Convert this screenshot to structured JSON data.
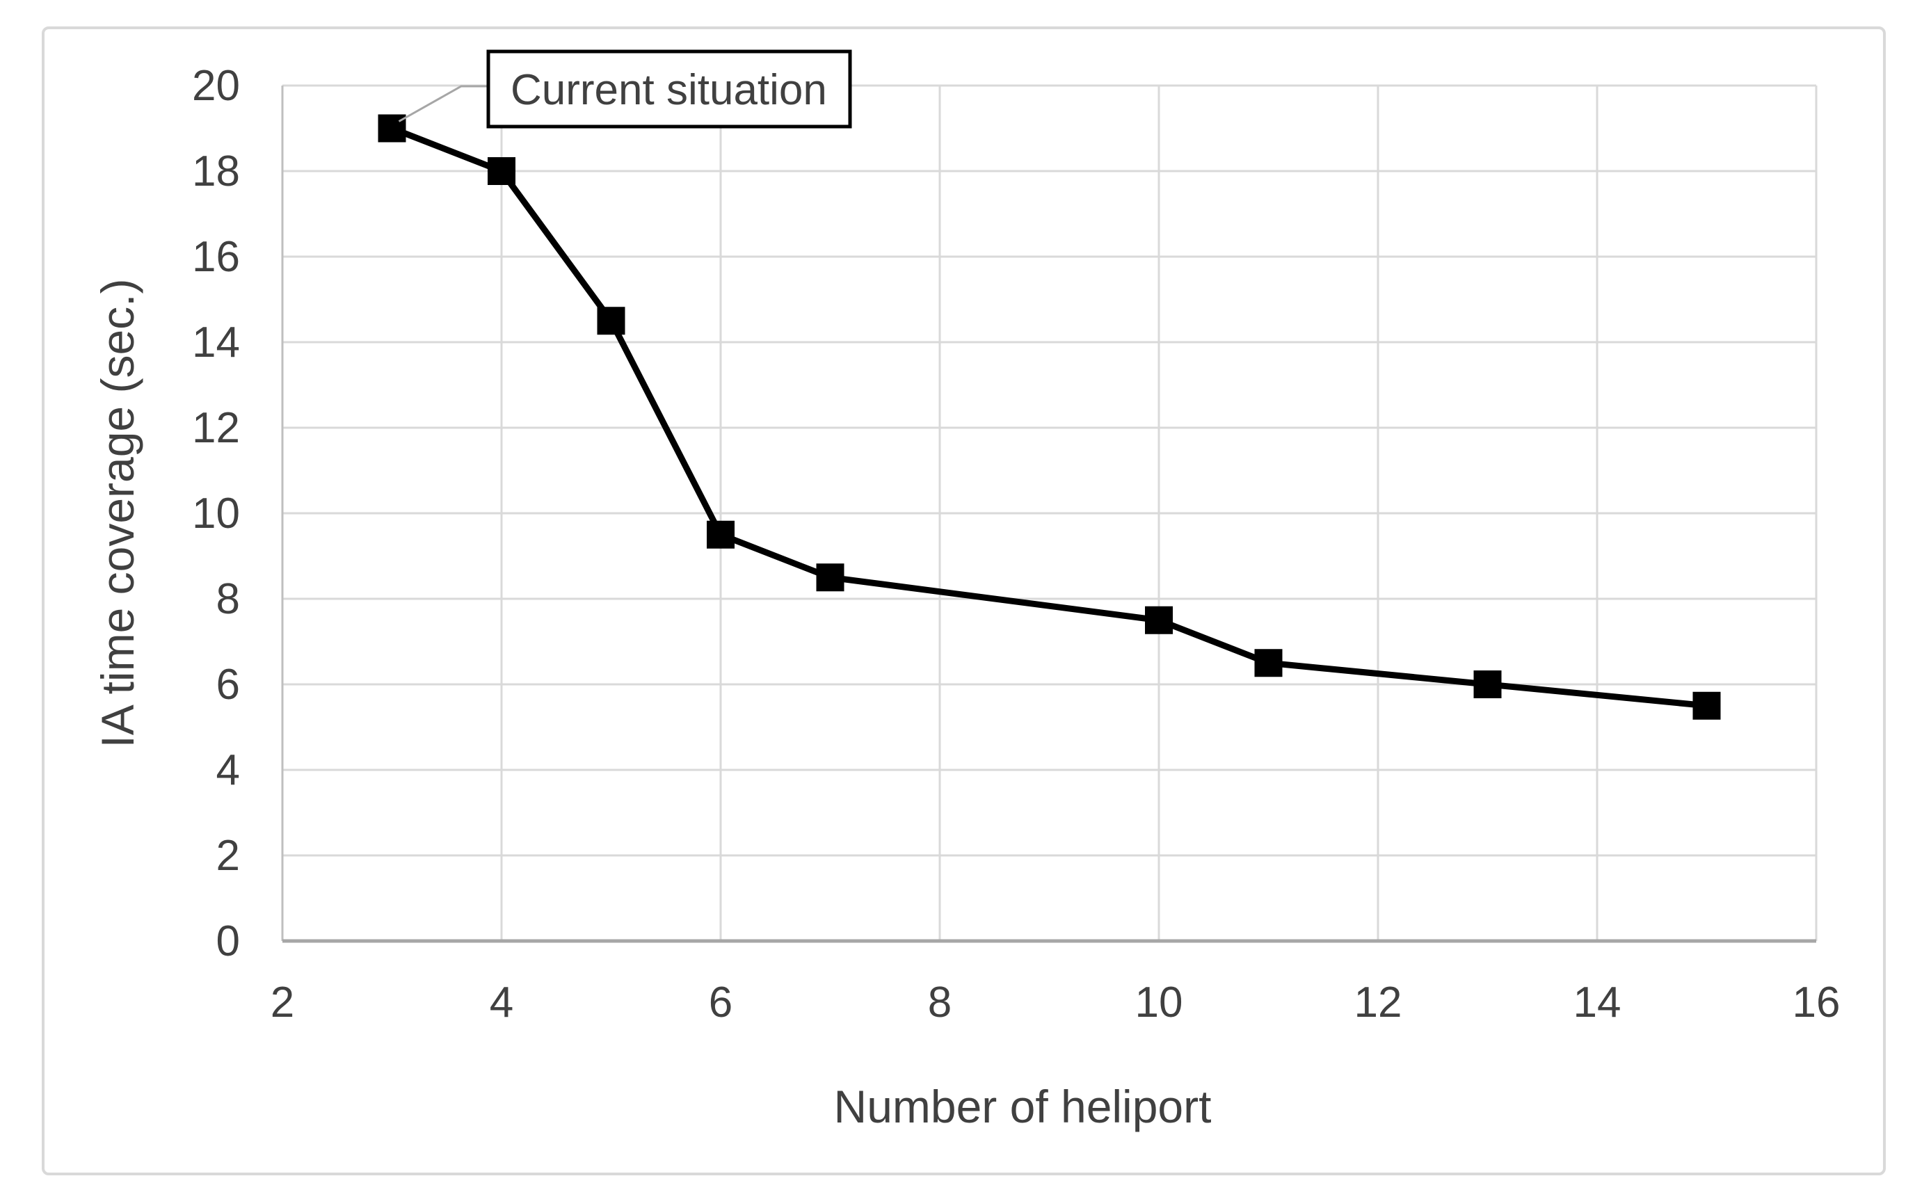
{
  "chart_data": {
    "type": "line",
    "title": "",
    "xlabel": "Number of heliport",
    "ylabel": "IA time coverage (sec.)",
    "x": [
      3,
      4,
      5,
      6,
      7,
      10,
      11,
      13,
      15
    ],
    "series": [
      {
        "name": "IA time coverage",
        "values": [
          19,
          18,
          14.5,
          9.5,
          8.5,
          7.5,
          6.5,
          6,
          5.5
        ]
      }
    ],
    "xlim": [
      2,
      16
    ],
    "ylim": [
      0,
      20
    ],
    "xticks": [
      2,
      4,
      6,
      8,
      10,
      12,
      14,
      16
    ],
    "yticks": [
      0,
      2,
      4,
      6,
      8,
      10,
      12,
      14,
      16,
      18,
      20
    ],
    "grid": true,
    "legend": "none",
    "annotation": {
      "text": "Current situation",
      "target_x": 3,
      "target_y": 19
    },
    "colors": {
      "line": "#000000",
      "gridline": "#d9d9d9",
      "axis_bottom": "#a6a6a6",
      "axis_left": "#bfbfbf",
      "leader": "#a6a6a6",
      "text": "#404040",
      "frame": "#d9d9d9",
      "annotation_border": "#000000",
      "background": "#ffffff"
    }
  }
}
